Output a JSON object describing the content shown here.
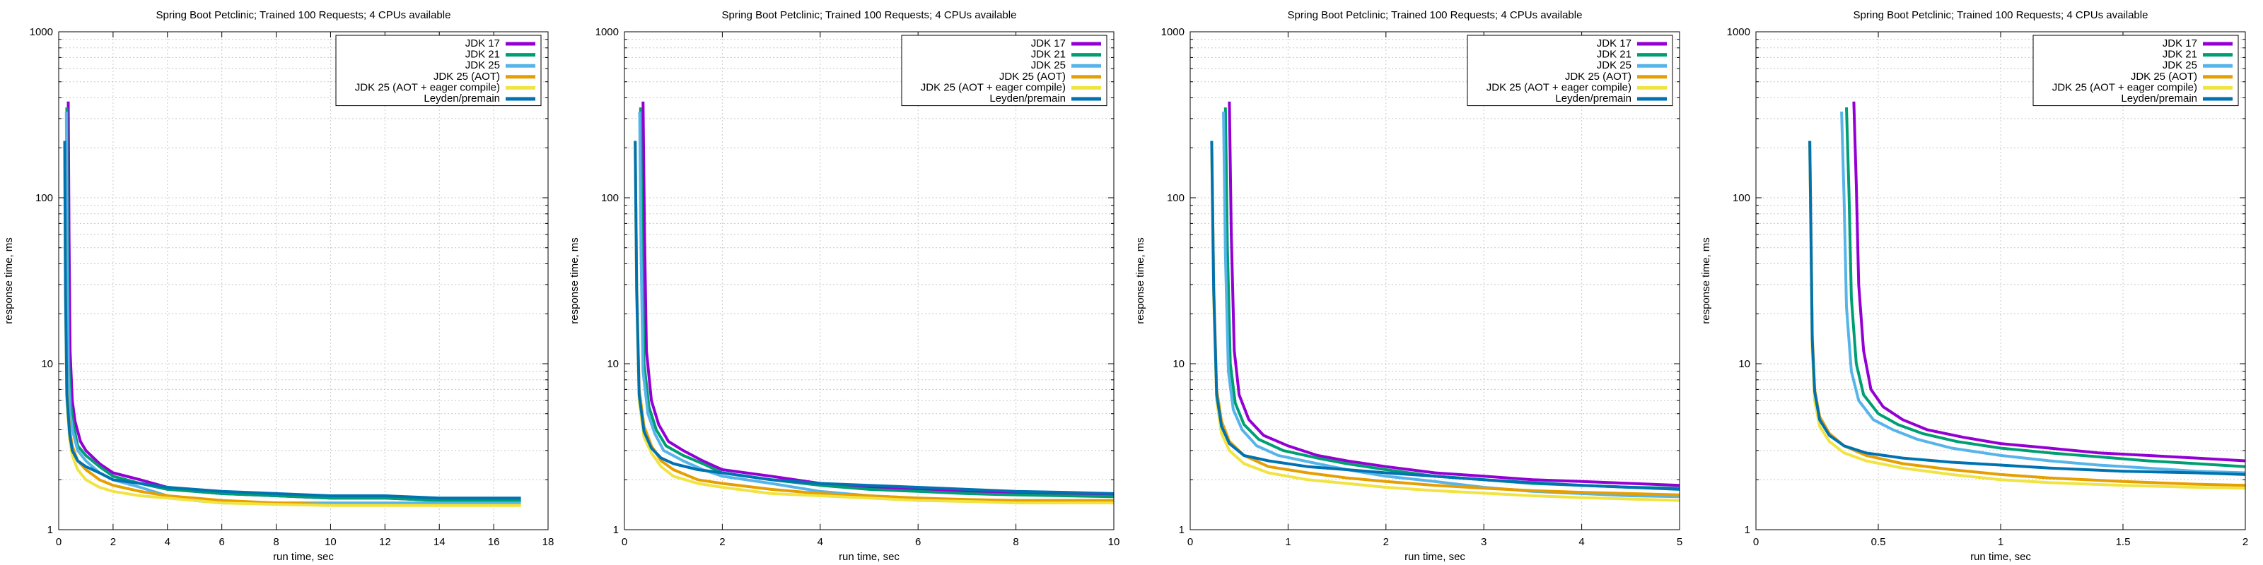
{
  "series_styles": [
    {
      "name": "JDK 17",
      "color": "#9400d3"
    },
    {
      "name": "JDK 21",
      "color": "#009e73"
    },
    {
      "name": "JDK 25",
      "color": "#56b4e9"
    },
    {
      "name": "JDK 25 (AOT)",
      "color": "#e69f00"
    },
    {
      "name": "JDK 25 (AOT + eager compile)",
      "color": "#f0e442"
    },
    {
      "name": "Leyden/premain",
      "color": "#0072b2"
    }
  ],
  "chart_data": [
    {
      "type": "line",
      "title": "Spring Boot Petclinic; Trained 100 Requests; 4 CPUs available",
      "xlabel": "run time, sec",
      "ylabel": "response time, ms",
      "xlim": [
        0,
        18
      ],
      "ylim": [
        1,
        1000
      ],
      "yscale": "log",
      "grid": true,
      "legend": "top-right",
      "xticks": [
        0,
        2,
        4,
        6,
        8,
        10,
        12,
        14,
        16,
        18
      ],
      "yticks": [
        1,
        10,
        100,
        1000
      ],
      "series": [
        {
          "name": "JDK 17",
          "x": [
            0.35,
            0.38,
            0.42,
            0.5,
            0.6,
            0.8,
            1.0,
            1.5,
            2.0,
            3.0,
            4.0,
            5.0,
            6.0,
            8.0,
            10.0,
            12.0,
            14.0,
            16.0,
            17.0
          ],
          "y": [
            380,
            60,
            12,
            6,
            4.5,
            3.4,
            3.0,
            2.5,
            2.2,
            2.0,
            1.8,
            1.7,
            1.65,
            1.6,
            1.55,
            1.55,
            1.5,
            1.5,
            1.5
          ]
        },
        {
          "name": "JDK 21",
          "x": [
            0.3,
            0.33,
            0.37,
            0.45,
            0.55,
            0.7,
            1.0,
            1.5,
            2.0,
            3.0,
            4.0,
            5.0,
            6.0,
            8.0,
            10.0,
            12.0,
            14.0,
            16.0,
            17.0
          ],
          "y": [
            350,
            50,
            10,
            5.5,
            4.2,
            3.2,
            2.8,
            2.4,
            2.1,
            1.9,
            1.75,
            1.7,
            1.65,
            1.6,
            1.55,
            1.55,
            1.5,
            1.5,
            1.5
          ]
        },
        {
          "name": "JDK 25",
          "x": [
            0.28,
            0.31,
            0.35,
            0.42,
            0.52,
            0.7,
            1.0,
            1.5,
            2.0,
            3.0,
            4.0,
            5.0,
            6.0,
            8.0,
            10.0,
            12.0,
            14.0,
            16.0,
            17.0
          ],
          "y": [
            330,
            45,
            9,
            5,
            3.9,
            3.0,
            2.6,
            2.2,
            2.0,
            1.8,
            1.6,
            1.5,
            1.45,
            1.45,
            1.45,
            1.45,
            1.45,
            1.45,
            1.45
          ]
        },
        {
          "name": "JDK 25 (AOT)",
          "x": [
            0.22,
            0.25,
            0.3,
            0.4,
            0.5,
            0.7,
            1.0,
            1.5,
            2.0,
            3.0,
            4.0,
            5.0,
            6.0,
            8.0,
            10.0,
            12.0,
            14.0,
            16.0,
            17.0
          ],
          "y": [
            220,
            30,
            7,
            4,
            3.2,
            2.6,
            2.3,
            2.0,
            1.85,
            1.7,
            1.6,
            1.55,
            1.5,
            1.45,
            1.42,
            1.42,
            1.42,
            1.42,
            1.42
          ]
        },
        {
          "name": "JDK 25 (AOT + eager compile)",
          "x": [
            0.22,
            0.25,
            0.3,
            0.4,
            0.5,
            0.7,
            1.0,
            1.5,
            2.0,
            3.0,
            4.0,
            5.0,
            6.0,
            8.0,
            10.0,
            12.0,
            14.0,
            16.0,
            17.0
          ],
          "y": [
            200,
            25,
            6,
            3.5,
            2.8,
            2.3,
            2.0,
            1.8,
            1.7,
            1.6,
            1.55,
            1.5,
            1.45,
            1.42,
            1.4,
            1.4,
            1.4,
            1.4,
            1.4
          ]
        },
        {
          "name": "Leyden/premain",
          "x": [
            0.22,
            0.25,
            0.3,
            0.4,
            0.5,
            0.7,
            1.0,
            1.5,
            2.0,
            3.0,
            4.0,
            5.0,
            6.0,
            8.0,
            10.0,
            12.0,
            14.0,
            16.0,
            17.0
          ],
          "y": [
            220,
            28,
            6.5,
            3.8,
            3.0,
            2.6,
            2.4,
            2.2,
            2.0,
            1.9,
            1.8,
            1.75,
            1.7,
            1.65,
            1.6,
            1.6,
            1.55,
            1.55,
            1.55
          ]
        }
      ]
    },
    {
      "type": "line",
      "title": "Spring Boot Petclinic; Trained 100 Requests; 4 CPUs available",
      "xlabel": "run time, sec",
      "ylabel": "response time, ms",
      "xlim": [
        0,
        10
      ],
      "ylim": [
        1,
        1000
      ],
      "yscale": "log",
      "grid": true,
      "legend": "top-right",
      "xticks": [
        0,
        2,
        4,
        6,
        8,
        10
      ],
      "yticks": [
        1,
        10,
        100,
        1000
      ],
      "series": [
        {
          "name": "JDK 17",
          "x": [
            0.38,
            0.41,
            0.45,
            0.55,
            0.7,
            0.9,
            1.2,
            1.6,
            2.0,
            3.0,
            4.0,
            5.0,
            6.0,
            7.0,
            8.0,
            9.0,
            10.0
          ],
          "y": [
            380,
            60,
            12,
            6,
            4.3,
            3.4,
            3.0,
            2.6,
            2.3,
            2.1,
            1.9,
            1.8,
            1.75,
            1.7,
            1.65,
            1.62,
            1.6
          ]
        },
        {
          "name": "JDK 21",
          "x": [
            0.33,
            0.36,
            0.4,
            0.5,
            0.65,
            0.85,
            1.2,
            1.6,
            2.0,
            3.0,
            4.0,
            5.0,
            6.0,
            7.0,
            8.0,
            9.0,
            10.0
          ],
          "y": [
            350,
            50,
            10,
            5.5,
            4.0,
            3.2,
            2.8,
            2.5,
            2.2,
            2.0,
            1.85,
            1.75,
            1.7,
            1.65,
            1.62,
            1.6,
            1.58
          ]
        },
        {
          "name": "JDK 25",
          "x": [
            0.31,
            0.34,
            0.38,
            0.48,
            0.62,
            0.8,
            1.2,
            1.6,
            2.0,
            3.0,
            4.0,
            5.0,
            6.0,
            7.0,
            8.0,
            9.0,
            10.0
          ],
          "y": [
            330,
            45,
            9,
            5,
            3.8,
            3.0,
            2.6,
            2.3,
            2.1,
            1.9,
            1.7,
            1.6,
            1.55,
            1.5,
            1.5,
            1.5,
            1.5
          ]
        },
        {
          "name": "JDK 25 (AOT)",
          "x": [
            0.22,
            0.25,
            0.3,
            0.4,
            0.55,
            0.75,
            1.0,
            1.5,
            2.0,
            3.0,
            4.0,
            5.0,
            6.0,
            7.0,
            8.0,
            9.0,
            10.0
          ],
          "y": [
            220,
            30,
            7,
            4.2,
            3.2,
            2.6,
            2.3,
            2.0,
            1.9,
            1.75,
            1.65,
            1.6,
            1.55,
            1.52,
            1.5,
            1.5,
            1.5
          ]
        },
        {
          "name": "JDK 25 (AOT + eager compile)",
          "x": [
            0.22,
            0.25,
            0.3,
            0.4,
            0.55,
            0.75,
            1.0,
            1.5,
            2.0,
            3.0,
            4.0,
            5.0,
            6.0,
            7.0,
            8.0,
            9.0,
            10.0
          ],
          "y": [
            200,
            25,
            6,
            3.6,
            2.9,
            2.4,
            2.1,
            1.9,
            1.8,
            1.65,
            1.6,
            1.55,
            1.5,
            1.48,
            1.45,
            1.45,
            1.45
          ]
        },
        {
          "name": "Leyden/premain",
          "x": [
            0.22,
            0.25,
            0.3,
            0.4,
            0.55,
            0.75,
            1.0,
            1.5,
            2.0,
            3.0,
            4.0,
            5.0,
            6.0,
            7.0,
            8.0,
            9.0,
            10.0
          ],
          "y": [
            220,
            28,
            6.5,
            3.9,
            3.1,
            2.7,
            2.5,
            2.3,
            2.2,
            2.0,
            1.9,
            1.85,
            1.8,
            1.75,
            1.7,
            1.68,
            1.65
          ]
        }
      ]
    },
    {
      "type": "line",
      "title": "Spring Boot Petclinic; Trained 100 Requests; 4 CPUs available",
      "xlabel": "run time, sec",
      "ylabel": "response time, ms",
      "xlim": [
        0,
        5
      ],
      "ylim": [
        1,
        1000
      ],
      "yscale": "log",
      "grid": true,
      "legend": "top-right",
      "xticks": [
        0,
        1,
        2,
        3,
        4,
        5
      ],
      "yticks": [
        1,
        10,
        100,
        1000
      ],
      "series": [
        {
          "name": "JDK 17",
          "x": [
            0.4,
            0.42,
            0.45,
            0.5,
            0.6,
            0.75,
            1.0,
            1.3,
            1.6,
            2.0,
            2.5,
            3.0,
            3.5,
            4.0,
            4.5,
            5.0
          ],
          "y": [
            380,
            60,
            12,
            6.5,
            4.6,
            3.7,
            3.2,
            2.8,
            2.6,
            2.4,
            2.2,
            2.1,
            2.0,
            1.95,
            1.9,
            1.85
          ]
        },
        {
          "name": "JDK 21",
          "x": [
            0.36,
            0.38,
            0.41,
            0.46,
            0.55,
            0.7,
            0.95,
            1.3,
            1.6,
            2.0,
            2.5,
            3.0,
            3.5,
            4.0,
            4.5,
            5.0
          ],
          "y": [
            350,
            50,
            10,
            5.8,
            4.3,
            3.5,
            3.0,
            2.7,
            2.5,
            2.3,
            2.1,
            2.0,
            1.9,
            1.85,
            1.8,
            1.78
          ]
        },
        {
          "name": "JDK 25",
          "x": [
            0.34,
            0.36,
            0.39,
            0.44,
            0.53,
            0.68,
            0.9,
            1.3,
            1.6,
            2.0,
            2.5,
            3.0,
            3.5,
            4.0,
            4.5,
            5.0
          ],
          "y": [
            330,
            45,
            9,
            5.3,
            4.0,
            3.2,
            2.8,
            2.5,
            2.3,
            2.1,
            1.95,
            1.8,
            1.7,
            1.65,
            1.6,
            1.58
          ]
        },
        {
          "name": "JDK 25 (AOT)",
          "x": [
            0.22,
            0.24,
            0.27,
            0.32,
            0.4,
            0.55,
            0.8,
            1.2,
            1.6,
            2.0,
            2.5,
            3.0,
            3.5,
            4.0,
            4.5,
            5.0
          ],
          "y": [
            220,
            30,
            7,
            4.5,
            3.4,
            2.8,
            2.4,
            2.2,
            2.05,
            1.95,
            1.85,
            1.78,
            1.72,
            1.68,
            1.65,
            1.62
          ]
        },
        {
          "name": "JDK 25 (AOT + eager compile)",
          "x": [
            0.22,
            0.24,
            0.27,
            0.32,
            0.4,
            0.55,
            0.8,
            1.2,
            1.6,
            2.0,
            2.5,
            3.0,
            3.5,
            4.0,
            4.5,
            5.0
          ],
          "y": [
            200,
            25,
            6,
            3.8,
            3.0,
            2.5,
            2.2,
            2.0,
            1.9,
            1.8,
            1.72,
            1.66,
            1.6,
            1.56,
            1.53,
            1.5
          ]
        },
        {
          "name": "Leyden/premain",
          "x": [
            0.22,
            0.24,
            0.27,
            0.32,
            0.4,
            0.55,
            0.8,
            1.2,
            1.6,
            2.0,
            2.5,
            3.0,
            3.5,
            4.0,
            4.5,
            5.0
          ],
          "y": [
            220,
            28,
            6.5,
            4.2,
            3.3,
            2.8,
            2.6,
            2.4,
            2.3,
            2.2,
            2.1,
            2.0,
            1.92,
            1.85,
            1.8,
            1.75
          ]
        }
      ]
    },
    {
      "type": "line",
      "title": "Spring Boot Petclinic; Trained 100 Requests; 4 CPUs available",
      "xlabel": "run time, sec",
      "ylabel": "response time, ms",
      "xlim": [
        0,
        2
      ],
      "ylim": [
        1,
        1000
      ],
      "yscale": "log",
      "grid": true,
      "legend": "top-right",
      "xticks": [
        0,
        0.5,
        1,
        1.5,
        2
      ],
      "yticks": [
        1,
        10,
        100,
        1000
      ],
      "series": [
        {
          "name": "JDK 17",
          "x": [
            0.4,
            0.41,
            0.42,
            0.44,
            0.47,
            0.52,
            0.6,
            0.7,
            0.85,
            1.0,
            1.2,
            1.4,
            1.6,
            1.8,
            2.0
          ],
          "y": [
            380,
            120,
            30,
            12,
            7,
            5.5,
            4.6,
            4.0,
            3.6,
            3.3,
            3.1,
            2.9,
            2.8,
            2.7,
            2.6
          ]
        },
        {
          "name": "JDK 21",
          "x": [
            0.37,
            0.38,
            0.39,
            0.41,
            0.44,
            0.5,
            0.58,
            0.68,
            0.82,
            1.0,
            1.2,
            1.4,
            1.6,
            1.8,
            2.0
          ],
          "y": [
            350,
            110,
            25,
            10,
            6.5,
            5.0,
            4.3,
            3.8,
            3.4,
            3.1,
            2.9,
            2.75,
            2.6,
            2.5,
            2.4
          ]
        },
        {
          "name": "JDK 25",
          "x": [
            0.35,
            0.36,
            0.37,
            0.39,
            0.42,
            0.48,
            0.56,
            0.66,
            0.8,
            1.0,
            1.2,
            1.4,
            1.6,
            1.8,
            2.0
          ],
          "y": [
            330,
            100,
            22,
            9,
            6,
            4.6,
            4.0,
            3.5,
            3.1,
            2.8,
            2.6,
            2.45,
            2.35,
            2.25,
            2.2
          ]
        },
        {
          "name": "JDK 25 (AOT)",
          "x": [
            0.22,
            0.225,
            0.23,
            0.24,
            0.26,
            0.3,
            0.36,
            0.45,
            0.6,
            0.8,
            1.0,
            1.2,
            1.5,
            1.8,
            2.0
          ],
          "y": [
            220,
            60,
            15,
            7,
            4.8,
            3.8,
            3.2,
            2.8,
            2.5,
            2.3,
            2.15,
            2.05,
            1.95,
            1.88,
            1.85
          ]
        },
        {
          "name": "JDK 25 (AOT + eager compile)",
          "x": [
            0.22,
            0.225,
            0.23,
            0.24,
            0.26,
            0.3,
            0.36,
            0.45,
            0.6,
            0.8,
            1.0,
            1.2,
            1.5,
            1.8,
            2.0
          ],
          "y": [
            200,
            50,
            12,
            6,
            4.2,
            3.4,
            2.9,
            2.6,
            2.35,
            2.15,
            2.0,
            1.92,
            1.85,
            1.8,
            1.78
          ]
        },
        {
          "name": "Leyden/premain",
          "x": [
            0.22,
            0.225,
            0.23,
            0.24,
            0.26,
            0.3,
            0.36,
            0.45,
            0.6,
            0.8,
            1.0,
            1.2,
            1.5,
            1.8,
            2.0
          ],
          "y": [
            220,
            55,
            14,
            6.8,
            4.6,
            3.7,
            3.2,
            2.9,
            2.7,
            2.55,
            2.45,
            2.35,
            2.25,
            2.2,
            2.15
          ]
        }
      ]
    }
  ]
}
